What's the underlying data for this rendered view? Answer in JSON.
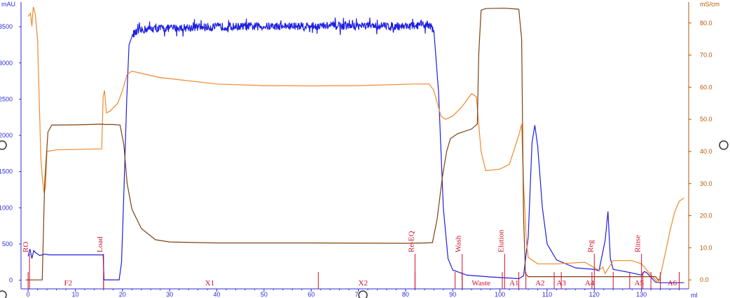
{
  "chart_data": {
    "type": "line",
    "left_axis": {
      "unit": "mAU",
      "ticks": [
        0,
        500,
        1000,
        1500,
        2000,
        2500,
        3000,
        3500
      ],
      "range": [
        -120,
        3840
      ],
      "color": "#2b2bd6"
    },
    "right_axis": {
      "unit": "mS/cm",
      "ticks": [
        "0.0",
        "10.0",
        "20.0",
        "30.0",
        "40.0",
        "50.0",
        "60.0",
        "70.0",
        "80.0"
      ],
      "range": [
        -2.8,
        86.5
      ],
      "color": "#b35900"
    },
    "x_axis": {
      "unit": "ml",
      "ticks": [
        0,
        10,
        20,
        30,
        40,
        50,
        60,
        70,
        80,
        90,
        100,
        110,
        120,
        130
      ],
      "range": [
        -1.5,
        140
      ]
    },
    "series": [
      {
        "color": "#1f1fe0",
        "axis": "left",
        "points": [
          [
            0,
            330
          ],
          [
            0.4,
            430
          ],
          [
            0.8,
            300
          ],
          [
            1.2,
            410
          ],
          [
            1.6,
            380
          ],
          [
            2.5,
            340
          ],
          [
            3.5,
            360
          ],
          [
            4.5,
            350
          ],
          [
            15.9,
            350
          ],
          [
            16.1,
            5
          ],
          [
            19.3,
            5
          ],
          [
            19.8,
            250
          ],
          [
            20.3,
            1200
          ],
          [
            20.9,
            2500
          ],
          [
            21.4,
            3250
          ],
          [
            22.2,
            3400
          ],
          [
            25,
            3470
          ],
          [
            40,
            3500
          ],
          [
            60,
            3510
          ],
          [
            82,
            3510
          ],
          [
            85,
            3530
          ],
          [
            86,
            3450
          ],
          [
            87,
            2600
          ],
          [
            88,
            1000
          ],
          [
            89,
            300
          ],
          [
            90,
            140
          ],
          [
            93,
            70
          ],
          [
            98,
            45
          ],
          [
            102,
            30
          ],
          [
            104,
            20
          ],
          [
            105,
            60
          ],
          [
            106,
            600
          ],
          [
            106.8,
            1900
          ],
          [
            107.4,
            2140
          ],
          [
            108,
            1850
          ],
          [
            109,
            1000
          ],
          [
            110,
            500
          ],
          [
            112,
            280
          ],
          [
            116,
            170
          ],
          [
            118,
            160
          ],
          [
            120,
            150
          ],
          [
            121,
            130
          ],
          [
            122.3,
            550
          ],
          [
            122.9,
            950
          ],
          [
            123.4,
            300
          ],
          [
            124,
            150
          ],
          [
            128,
            100
          ],
          [
            130,
            70
          ],
          [
            130.6,
            120
          ],
          [
            131.2,
            100
          ],
          [
            132,
            40
          ],
          [
            133,
            -30
          ],
          [
            134,
            -35
          ],
          [
            139,
            -35
          ]
        ]
      },
      {
        "color": "#f0892e",
        "axis": "right",
        "points": [
          [
            0,
            82
          ],
          [
            0.5,
            83
          ],
          [
            0.8,
            79
          ],
          [
            1.1,
            85
          ],
          [
            1.5,
            83
          ],
          [
            2,
            75
          ],
          [
            2.7,
            38
          ],
          [
            3,
            32
          ],
          [
            3.4,
            27
          ],
          [
            3.7,
            29
          ],
          [
            4,
            40
          ],
          [
            6,
            40.5
          ],
          [
            10,
            40.6
          ],
          [
            15.6,
            40.8
          ],
          [
            15.9,
            57
          ],
          [
            16.2,
            59
          ],
          [
            16.6,
            52
          ],
          [
            17.3,
            52.5
          ],
          [
            19,
            55
          ],
          [
            20,
            59
          ],
          [
            21,
            64
          ],
          [
            22,
            65
          ],
          [
            28,
            63
          ],
          [
            40,
            61
          ],
          [
            50,
            60.5
          ],
          [
            60,
            60.4
          ],
          [
            70,
            60.5
          ],
          [
            82,
            61
          ],
          [
            85,
            61
          ],
          [
            86,
            59
          ],
          [
            87.5,
            51
          ],
          [
            88.5,
            50
          ],
          [
            90,
            51
          ],
          [
            92,
            54
          ],
          [
            94,
            58
          ],
          [
            95,
            57
          ],
          [
            96,
            40
          ],
          [
            97,
            34
          ],
          [
            100,
            34.5
          ],
          [
            102,
            36
          ],
          [
            104,
            45
          ],
          [
            104.6,
            48.5
          ],
          [
            105,
            30
          ],
          [
            105.6,
            12
          ],
          [
            106,
            7
          ],
          [
            108,
            5
          ],
          [
            112,
            5
          ],
          [
            118,
            5.5
          ],
          [
            121,
            3
          ],
          [
            121.8,
            4
          ],
          [
            122.3,
            2
          ],
          [
            124,
            6
          ],
          [
            128,
            6
          ],
          [
            130,
            5
          ],
          [
            132,
            1.5
          ],
          [
            133.5,
            -0.8
          ],
          [
            134.2,
            2.5
          ],
          [
            135,
            8
          ],
          [
            136,
            15
          ],
          [
            137,
            21
          ],
          [
            138,
            24.5
          ],
          [
            139,
            25.5
          ]
        ]
      },
      {
        "color": "#7c4212",
        "axis": "right",
        "points": [
          [
            -0.5,
            0
          ],
          [
            3,
            0
          ],
          [
            3.5,
            30
          ],
          [
            4.2,
            46
          ],
          [
            5,
            48.2
          ],
          [
            10,
            48.3
          ],
          [
            15.7,
            48.5
          ],
          [
            16.3,
            48.4
          ],
          [
            18,
            48.4
          ],
          [
            19.5,
            48.2
          ],
          [
            20.3,
            42
          ],
          [
            21,
            30
          ],
          [
            22,
            22
          ],
          [
            24,
            16
          ],
          [
            27,
            12.5
          ],
          [
            30,
            11.8
          ],
          [
            40,
            11.5
          ],
          [
            60,
            11.5
          ],
          [
            80,
            11.4
          ],
          [
            84,
            11.5
          ],
          [
            85.7,
            11.6
          ],
          [
            86.7,
            19
          ],
          [
            87.8,
            32
          ],
          [
            88.7,
            40
          ],
          [
            89.5,
            44
          ],
          [
            91,
            45.5
          ],
          [
            94,
            47
          ],
          [
            95.2,
            48.5
          ],
          [
            95.5,
            70
          ],
          [
            96,
            84
          ],
          [
            97,
            84.5
          ],
          [
            101,
            84.6
          ],
          [
            104,
            84.3
          ],
          [
            104.6,
            75
          ],
          [
            105,
            20
          ],
          [
            105.4,
            2
          ],
          [
            106,
            1
          ],
          [
            110,
            1
          ],
          [
            120,
            1
          ],
          [
            130,
            1
          ],
          [
            133,
            1
          ],
          [
            133.5,
            0
          ],
          [
            134,
            0
          ]
        ]
      }
    ],
    "fraction_marks": [
      {
        "label": "RO",
        "x": 0.3
      },
      {
        "label": "Load",
        "x": 16
      },
      {
        "label": "Re-EQ",
        "x": 82
      },
      {
        "label": "Wash",
        "x": 92
      },
      {
        "label": "Elution",
        "x": 101
      },
      {
        "label": "Reg",
        "x": 120
      },
      {
        "label": "Rinse",
        "x": 130
      }
    ],
    "fractions": [
      {
        "label": "F2",
        "x": 8.5
      },
      {
        "label": "X1",
        "x": 38.5
      },
      {
        "label": "X2",
        "x": 71
      },
      {
        "label": "Waste",
        "x": 96
      },
      {
        "label": "A1",
        "x": 103
      },
      {
        "label": "A2",
        "x": 108.5
      },
      {
        "label": "A3",
        "x": 113
      },
      {
        "label": "A4",
        "x": 119
      },
      {
        "label": "A5",
        "x": 129.5
      },
      {
        "label": "A6",
        "x": 136.5
      }
    ],
    "fraction_ticks": [
      0,
      16,
      61.5,
      82,
      90.5,
      92,
      100.5,
      104,
      105.5,
      111.5,
      113,
      119.5,
      124,
      127.5,
      130.3,
      132,
      134,
      138
    ]
  }
}
